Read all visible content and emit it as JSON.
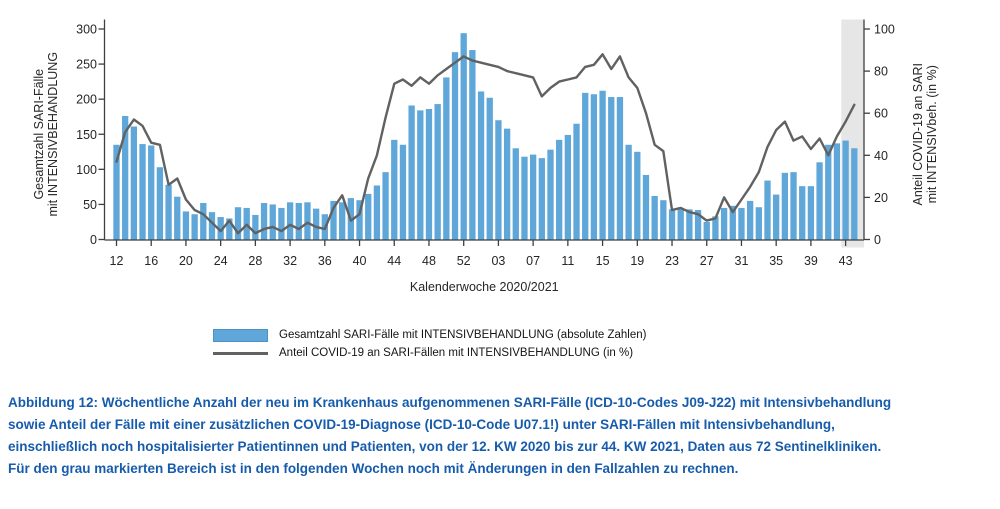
{
  "figure": {
    "caption_lines": [
      "Abbildung 12: Wöchentliche Anzahl der neu im Krankenhaus aufgenommenen SARI-Fälle (ICD-10-Codes J09-J22) mit Intensivbehandlung",
      "sowie Anteil der Fälle mit einer zusätzlichen COVID-19-Diagnose (ICD-10-Code U07.1!) unter SARI-Fällen mit Intensivbehandlung,",
      "einschließlich noch hospitalisierter Patientinnen und Patienten, von der 12. KW 2020 bis zur 44. KW 2021, Daten aus 72 Sentinelkliniken.",
      "Für den grau markierten Bereich ist in den folgenden Wochen noch mit Änderungen in den Fallzahlen zu rechnen."
    ],
    "caption_color": "#175cac"
  },
  "chart_data": {
    "type": "bar+line",
    "xlabel": "Kalenderwoche 2020/2021",
    "x_tick_labels": [
      "12",
      "16",
      "20",
      "24",
      "28",
      "32",
      "36",
      "40",
      "44",
      "48",
      "52",
      "03",
      "07",
      "11",
      "15",
      "19",
      "23",
      "27",
      "31",
      "35",
      "39",
      "43"
    ],
    "x_tick_every": 4,
    "n_weeks": 86,
    "left_axis": {
      "label_line1": "Gesamtzahl SARI-Fälle",
      "label_line2": "mit INTENSIVBEHANDLUNG",
      "min": 0,
      "max": 300,
      "ticks": [
        0,
        50,
        100,
        150,
        200,
        250,
        300
      ]
    },
    "right_axis": {
      "label_line1": "Anteil COVID-19 an SARI",
      "label_line2": "mit INTENSIVbeh. (in %)",
      "min": 0,
      "max": 100,
      "ticks": [
        0,
        20,
        40,
        60,
        80,
        100
      ]
    },
    "series": [
      {
        "name": "Gesamtzahl SARI-Fälle mit INTENSIVBEHANDLUNG (absolute Zahlen)",
        "type": "bar",
        "axis": "left",
        "color": "#5fa6d9",
        "values": [
          135,
          176,
          161,
          136,
          134,
          103,
          78,
          61,
          40,
          36,
          52,
          39,
          32,
          30,
          46,
          45,
          35,
          52,
          50,
          45,
          53,
          52,
          53,
          44,
          36,
          55,
          53,
          59,
          56,
          65,
          77,
          96,
          142,
          135,
          191,
          184,
          186,
          193,
          231,
          267,
          294,
          270,
          211,
          202,
          170,
          158,
          130,
          118,
          121,
          116,
          128,
          142,
          149,
          165,
          209,
          207,
          212,
          203,
          203,
          135,
          125,
          92,
          62,
          56,
          43,
          45,
          43,
          42,
          25,
          33,
          45,
          48,
          45,
          55,
          46,
          84,
          64,
          95,
          96,
          76,
          76,
          110,
          135,
          137,
          141,
          130
        ]
      },
      {
        "name": "Anteil COVID-19 an SARI-Fällen mit INTENSIVBEHANDLUNG (in %)",
        "type": "line",
        "axis": "right",
        "color": "#616161",
        "values": [
          37,
          51,
          57,
          54,
          46,
          45,
          26,
          29,
          19,
          14,
          12,
          8,
          4,
          9,
          3,
          7,
          3,
          5,
          6,
          4,
          7,
          5,
          8,
          6,
          5,
          15,
          21,
          9,
          12,
          29,
          40,
          58,
          74,
          76,
          73,
          77,
          74,
          78,
          81,
          84,
          87,
          85,
          84,
          83,
          82,
          80,
          79,
          78,
          77,
          68,
          72,
          75,
          76,
          77,
          82,
          83,
          88,
          81,
          87,
          77,
          72,
          60,
          45,
          42,
          14,
          15,
          13,
          12,
          9,
          10,
          20,
          13,
          19,
          25,
          32,
          44,
          52,
          56,
          47,
          49,
          43,
          48,
          40,
          49,
          56,
          64
        ]
      }
    ],
    "shaded_region": {
      "covers_last_weeks": 2,
      "color": "#e6e6e6"
    }
  }
}
